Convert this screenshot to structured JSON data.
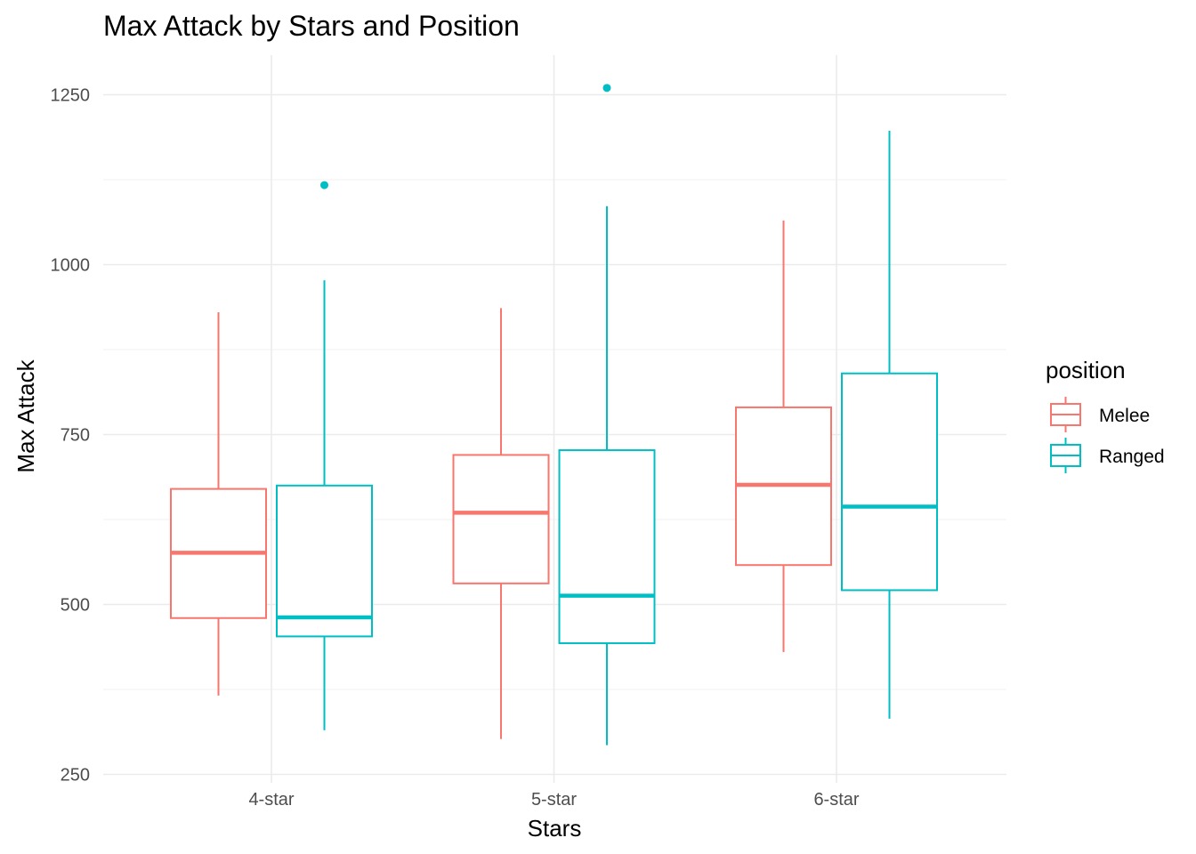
{
  "chart_data": {
    "type": "boxplot",
    "title": "Max Attack by Stars and Position",
    "xlabel": "Stars",
    "ylabel": "Max Attack",
    "categories": [
      "4-star",
      "5-star",
      "6-star"
    ],
    "ylim": [
      235,
      1310
    ],
    "yticks": [
      250,
      500,
      750,
      1000,
      1250
    ],
    "grid": true,
    "legend": {
      "title": "position",
      "placement": "right"
    },
    "series": [
      {
        "name": "Melee",
        "color": "#F8766D",
        "boxes": [
          {
            "min": 366,
            "q1": 480,
            "median": 576,
            "q3": 670,
            "max": 930,
            "outliers": []
          },
          {
            "min": 302,
            "q1": 531,
            "median": 635,
            "q3": 720,
            "max": 936,
            "outliers": []
          },
          {
            "min": 430,
            "q1": 558,
            "median": 676,
            "q3": 790,
            "max": 1065,
            "outliers": []
          }
        ]
      },
      {
        "name": "Ranged",
        "color": "#00BFC4",
        "boxes": [
          {
            "min": 315,
            "q1": 453,
            "median": 481,
            "q3": 675,
            "max": 977,
            "outliers": [
              1117
            ]
          },
          {
            "min": 293,
            "q1": 443,
            "median": 513,
            "q3": 727,
            "max": 1086,
            "outliers": [
              1260
            ]
          },
          {
            "min": 332,
            "q1": 521,
            "median": 644,
            "q3": 840,
            "max": 1197,
            "outliers": []
          }
        ]
      }
    ]
  }
}
